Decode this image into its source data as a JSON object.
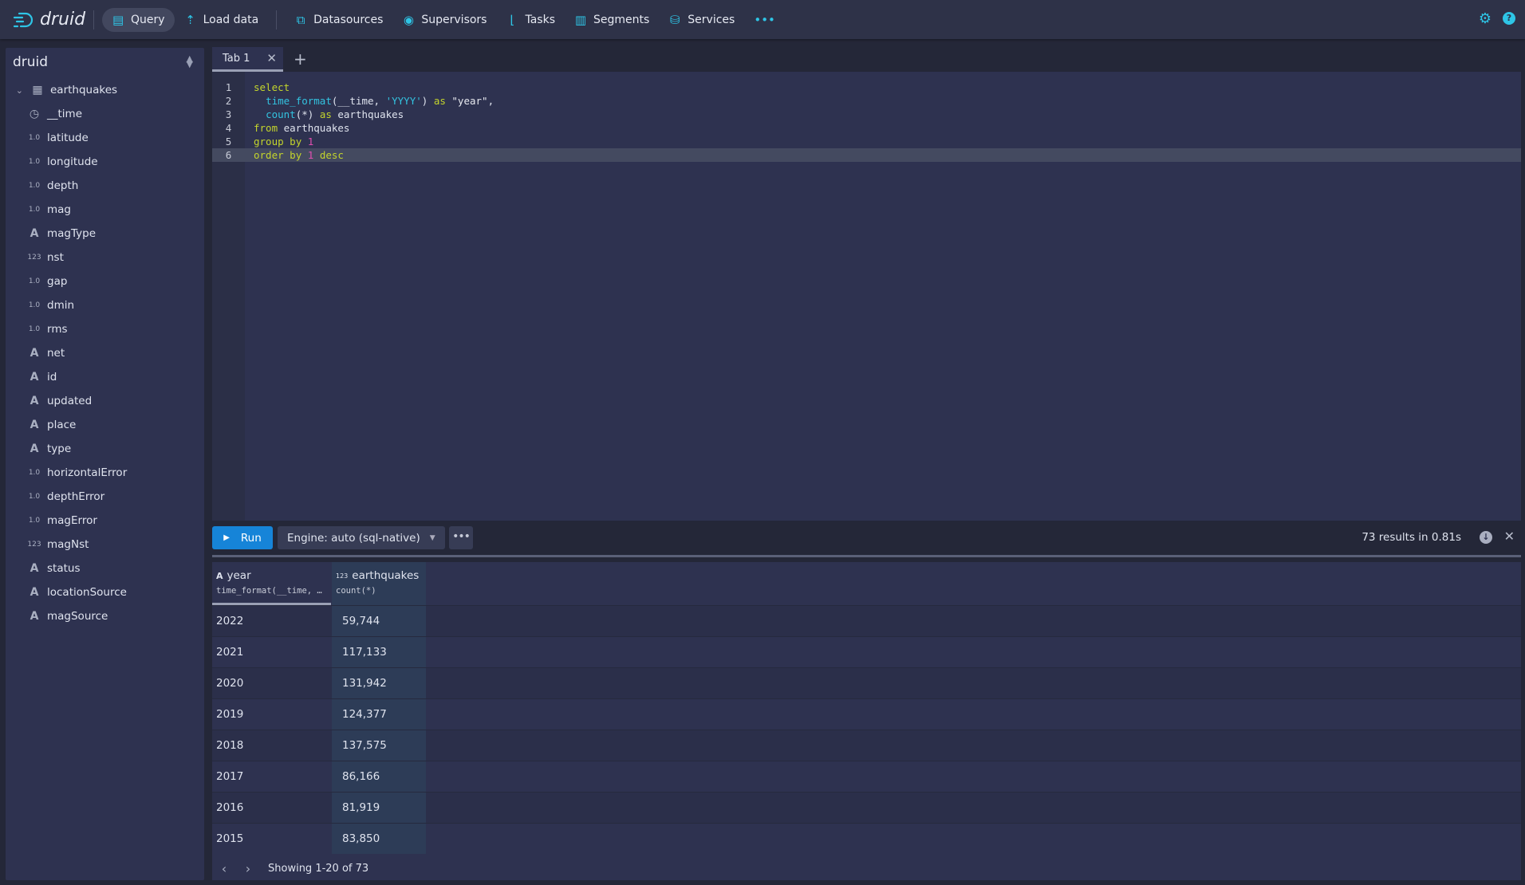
{
  "nav": {
    "brand": "druid",
    "items": [
      {
        "label": "Query",
        "icon": "document-icon",
        "active": true
      },
      {
        "label": "Load data",
        "icon": "upload-icon"
      },
      {
        "label": "Datasources",
        "icon": "multi-select-icon"
      },
      {
        "label": "Supervisors",
        "icon": "eye-icon"
      },
      {
        "label": "Tasks",
        "icon": "gantt-chart-icon"
      },
      {
        "label": "Segments",
        "icon": "stacked-chart-icon"
      },
      {
        "label": "Services",
        "icon": "database-icon"
      }
    ],
    "more": "•••"
  },
  "sidebar": {
    "title": "druid",
    "table": "earthquakes",
    "columns": [
      {
        "name": "__time",
        "type": "clock"
      },
      {
        "name": "latitude",
        "type": "1.0"
      },
      {
        "name": "longitude",
        "type": "1.0"
      },
      {
        "name": "depth",
        "type": "1.0"
      },
      {
        "name": "mag",
        "type": "1.0"
      },
      {
        "name": "magType",
        "type": "A"
      },
      {
        "name": "nst",
        "type": "123"
      },
      {
        "name": "gap",
        "type": "1.0"
      },
      {
        "name": "dmin",
        "type": "1.0"
      },
      {
        "name": "rms",
        "type": "1.0"
      },
      {
        "name": "net",
        "type": "A"
      },
      {
        "name": "id",
        "type": "A"
      },
      {
        "name": "updated",
        "type": "A"
      },
      {
        "name": "place",
        "type": "A"
      },
      {
        "name": "type",
        "type": "A"
      },
      {
        "name": "horizontalError",
        "type": "1.0"
      },
      {
        "name": "depthError",
        "type": "1.0"
      },
      {
        "name": "magError",
        "type": "1.0"
      },
      {
        "name": "magNst",
        "type": "123"
      },
      {
        "name": "status",
        "type": "A"
      },
      {
        "name": "locationSource",
        "type": "A"
      },
      {
        "name": "magSource",
        "type": "A"
      }
    ]
  },
  "tabs": [
    {
      "label": "Tab 1"
    }
  ],
  "editor": {
    "lines": [
      "select",
      "  time_format(__time, 'YYYY') as \"year\",",
      "  count(*) as earthquakes",
      "from earthquakes",
      "group by 1",
      "order by 1 desc"
    ]
  },
  "toolbar": {
    "run": "Run",
    "engine": "Engine: auto (sql-native)",
    "more": "•••",
    "result_info": "73 results in 0.81s"
  },
  "results": {
    "columns": [
      {
        "name": "year",
        "type": "A",
        "expr": "time_format(__time, …"
      },
      {
        "name": "earthquakes",
        "type": "123",
        "expr": "count(*)"
      }
    ],
    "rows": [
      [
        "2022",
        "59,744"
      ],
      [
        "2021",
        "117,133"
      ],
      [
        "2020",
        "131,942"
      ],
      [
        "2019",
        "124,377"
      ],
      [
        "2018",
        "137,575"
      ],
      [
        "2017",
        "86,166"
      ],
      [
        "2016",
        "81,919"
      ],
      [
        "2015",
        "83,850"
      ]
    ],
    "pagination": "Showing 1-20 of 73"
  },
  "colors": {
    "accent": "#2ec5e6",
    "run_button": "#1684d8",
    "background": "#242738"
  }
}
